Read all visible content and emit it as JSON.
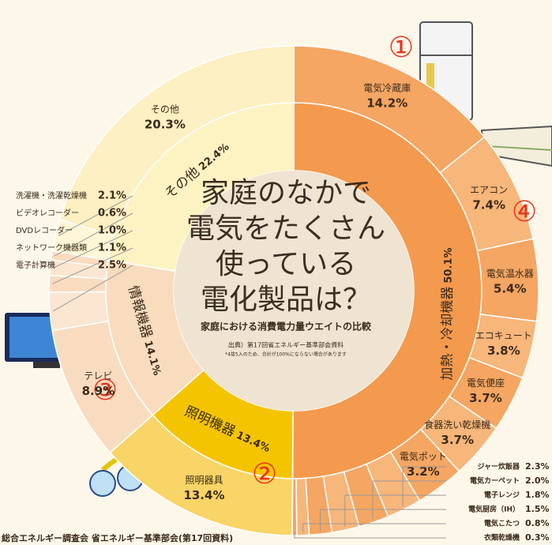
{
  "chart_data": {
    "type": "donut",
    "title": [
      "家庭のなかで",
      "電気をたくさん",
      "使っている",
      "電化製品は？"
    ],
    "subtitle": "家庭における消費電力量ウエイトの比較",
    "source": "出典）第17回省エネルギー基準部会資料",
    "note": "*4捨5入のため、合計が100%にならない場合があります",
    "footer": "総合エネルギー調査会 省エネルギー基準部会(第17回資料)",
    "badges": [
      "①",
      "②",
      "③",
      "④"
    ],
    "inner": {
      "categories": [
        "加熱・冷却機器",
        "照明機器",
        "情報機器",
        "その他"
      ],
      "values": [
        50.1,
        13.4,
        14.1,
        22.4
      ],
      "value_labels": [
        "50.1%",
        "13.4%",
        "14.1%",
        "22.4%"
      ],
      "colors": [
        "#f39a4e",
        "#f5c400",
        "#f8dcbd",
        "#fdf3c2"
      ]
    },
    "outer": {
      "categories": [
        "電気冷蔵庫",
        "エアコン",
        "電気温水器",
        "エコキュート",
        "電気便座",
        "食器洗い乾燥機",
        "電気ポット",
        "ジャー炊飯器",
        "電気カーペット",
        "電子レンジ",
        "電気厨房（IH）",
        "電気こたつ",
        "衣類乾燥機",
        "照明器具",
        "テレビ",
        "電子計算機",
        "ネットワーク機器類",
        "DVDレコーダー",
        "ビデオレコーダー",
        "洗濯機・洗濯乾燥機",
        "その他"
      ],
      "values": [
        14.2,
        7.4,
        5.4,
        3.8,
        3.7,
        3.7,
        3.2,
        2.3,
        2.0,
        1.8,
        1.5,
        0.8,
        0.3,
        13.4,
        8.9,
        2.5,
        1.1,
        1.0,
        0.6,
        2.1,
        20.3
      ],
      "value_labels": [
        "14.2%",
        "7.4%",
        "5.4%",
        "3.8%",
        "3.7%",
        "3.7%",
        "3.2%",
        "2.3%",
        "2.0%",
        "1.8%",
        "1.5%",
        "0.8%",
        "0.3%",
        "13.4%",
        "8.9%",
        "2.5%",
        "1.1%",
        "1.0%",
        "0.6%",
        "2.1%",
        "20.3%"
      ],
      "colors": [
        "#f4a662",
        "#f7b67a",
        "#f4a662",
        "#f7b67a",
        "#f4a662",
        "#f7b67a",
        "#f4a662",
        "#f7b67a",
        "#f4a662",
        "#f7b67a",
        "#f4a662",
        "#f7b67a",
        "#f4a662",
        "#f9d466",
        "#f9dcc0",
        "#fbe6d2",
        "#f9dcc0",
        "#fbe6d2",
        "#f9dcc0",
        "#fef6d6",
        "#fdf0c2"
      ]
    }
  }
}
